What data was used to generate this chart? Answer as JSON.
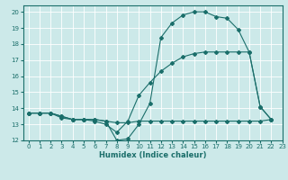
{
  "xlabel": "Humidex (Indice chaleur)",
  "ylabel": "",
  "xlim": [
    -0.5,
    23
  ],
  "ylim": [
    12,
    20.4
  ],
  "xticks": [
    0,
    1,
    2,
    3,
    4,
    5,
    6,
    7,
    8,
    9,
    10,
    11,
    12,
    13,
    14,
    15,
    16,
    17,
    18,
    19,
    20,
    21,
    22,
    23
  ],
  "yticks": [
    12,
    13,
    14,
    15,
    16,
    17,
    18,
    19,
    20
  ],
  "background_color": "#cce9e9",
  "grid_color": "#ffffff",
  "line_color": "#1a6e6a",
  "curve1_x": [
    0,
    1,
    2,
    3,
    4,
    5,
    6,
    7,
    8,
    9,
    10,
    11,
    12,
    13,
    14,
    15,
    16,
    17,
    18,
    19,
    20,
    21,
    22
  ],
  "curve1_y": [
    13.7,
    13.7,
    13.7,
    13.5,
    13.3,
    13.3,
    13.3,
    13.2,
    12.0,
    12.1,
    13.0,
    14.3,
    18.4,
    19.3,
    19.8,
    20.0,
    20.0,
    19.7,
    19.6,
    18.9,
    17.5,
    14.1,
    13.3
  ],
  "curve2_x": [
    0,
    1,
    2,
    3,
    4,
    5,
    6,
    7,
    8,
    9,
    10,
    11,
    12,
    13,
    14,
    15,
    16,
    17,
    18,
    19,
    20,
    21,
    22
  ],
  "curve2_y": [
    13.7,
    13.7,
    13.7,
    13.5,
    13.3,
    13.3,
    13.2,
    13.0,
    12.5,
    13.2,
    14.8,
    15.6,
    16.3,
    16.8,
    17.2,
    17.4,
    17.5,
    17.5,
    17.5,
    17.5,
    17.5,
    14.1,
    13.3
  ],
  "curve3_x": [
    0,
    1,
    2,
    3,
    4,
    5,
    6,
    7,
    8,
    9,
    10,
    11,
    12,
    13,
    14,
    15,
    16,
    17,
    18,
    19,
    20,
    21,
    22
  ],
  "curve3_y": [
    13.7,
    13.7,
    13.7,
    13.4,
    13.3,
    13.3,
    13.3,
    13.2,
    13.1,
    13.1,
    13.2,
    13.2,
    13.2,
    13.2,
    13.2,
    13.2,
    13.2,
    13.2,
    13.2,
    13.2,
    13.2,
    13.2,
    13.3
  ],
  "figsize": [
    3.2,
    2.0
  ],
  "dpi": 100
}
